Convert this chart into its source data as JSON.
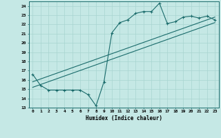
{
  "xlabel": "Humidex (Indice chaleur)",
  "bg_color": "#c5e8e5",
  "line_color": "#1a6b6b",
  "grid_color": "#a8d4d0",
  "xlim": [
    -0.5,
    23.5
  ],
  "ylim": [
    13,
    24.5
  ],
  "yticks": [
    13,
    14,
    15,
    16,
    17,
    18,
    19,
    20,
    21,
    22,
    23,
    24
  ],
  "xticks": [
    0,
    1,
    2,
    3,
    4,
    5,
    6,
    7,
    8,
    9,
    10,
    11,
    12,
    13,
    14,
    15,
    16,
    17,
    18,
    19,
    20,
    21,
    22,
    23
  ],
  "series1_x": [
    0,
    1,
    2,
    3,
    4,
    5,
    6,
    7,
    8,
    9,
    10,
    11,
    12,
    13,
    14,
    15,
    16,
    17,
    18,
    19,
    20,
    21,
    22,
    23
  ],
  "series1_y": [
    16.6,
    15.4,
    14.9,
    14.9,
    14.9,
    14.9,
    14.9,
    14.4,
    13.2,
    15.8,
    21.1,
    22.2,
    22.5,
    23.2,
    23.4,
    23.4,
    24.3,
    22.1,
    22.3,
    22.8,
    22.9,
    22.7,
    22.9,
    22.5
  ],
  "series2_x": [
    0,
    23
  ],
  "series2_y": [
    15.8,
    22.8
  ],
  "series3_x": [
    0,
    23
  ],
  "series3_y": [
    15.2,
    22.2
  ]
}
